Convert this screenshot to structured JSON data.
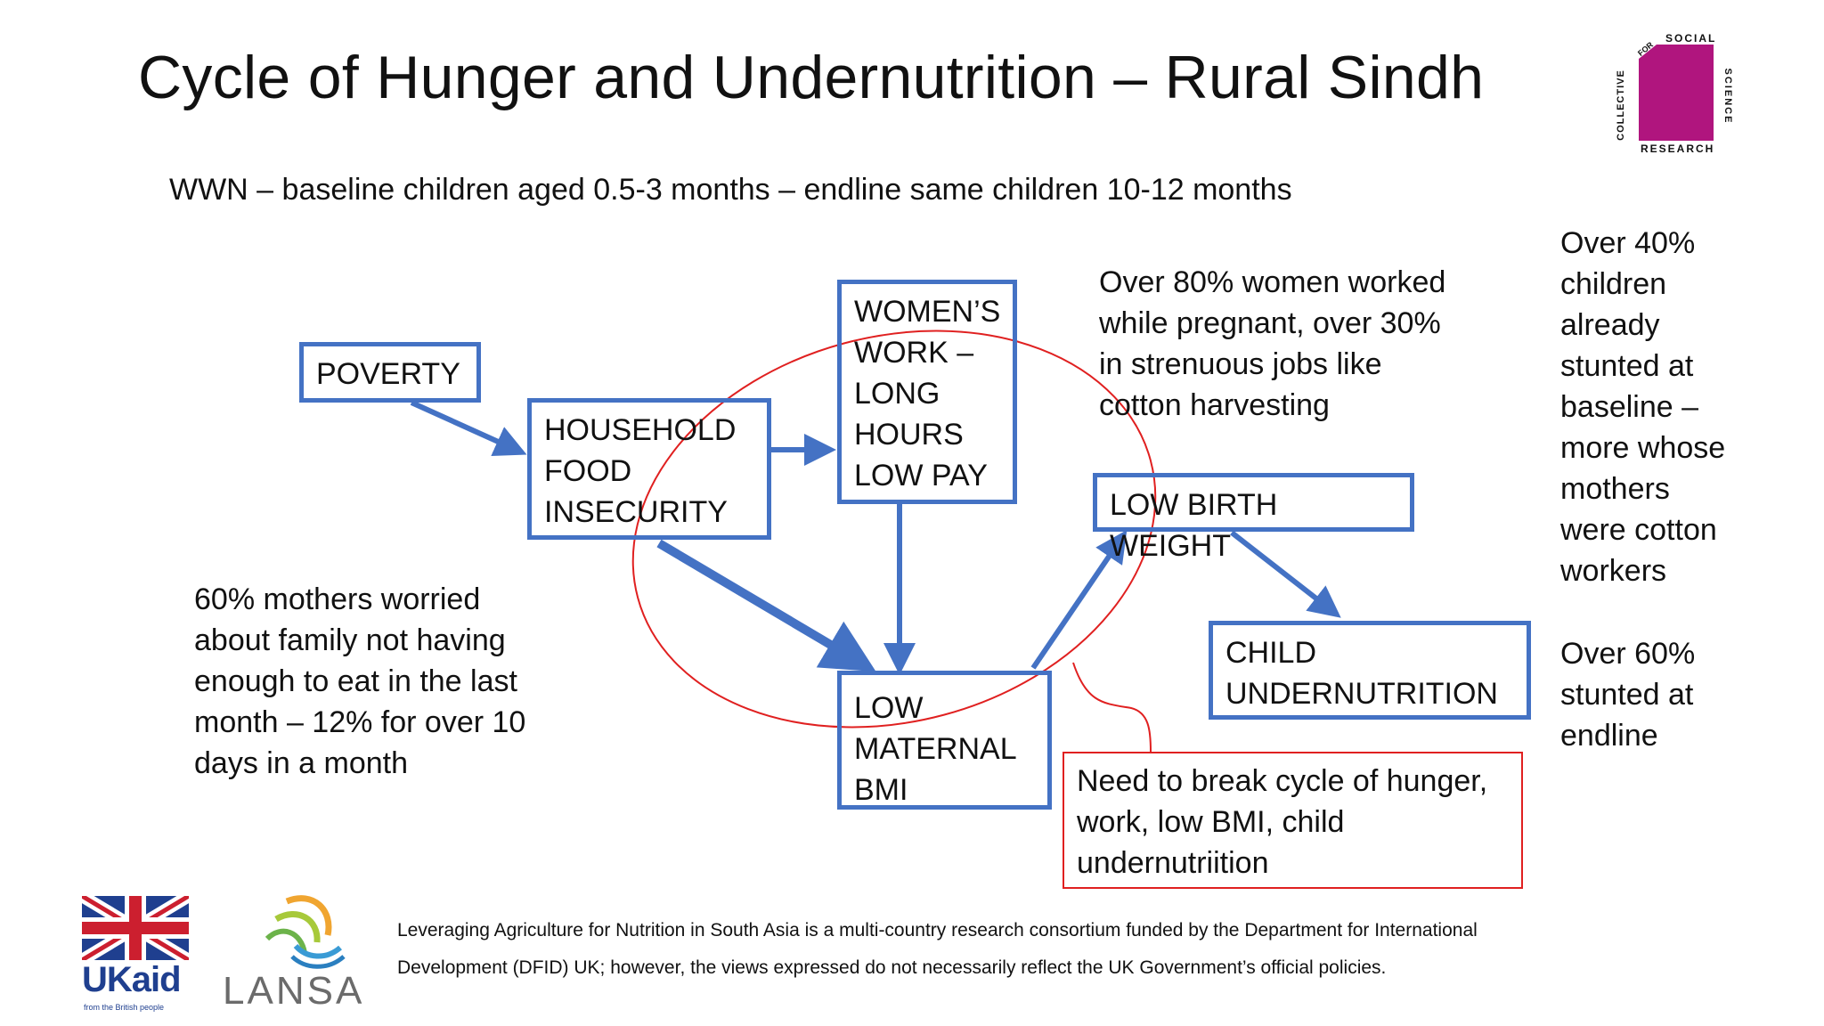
{
  "title": "Cycle of Hunger and Undernutrition – Rural Sindh",
  "subtitle": "WWN – baseline children aged 0.5-3 months – endline same children 10-12 months",
  "boxes": {
    "poverty": "POVERTY",
    "food_insecurity": "HOUSEHOLD\nFOOD\nINSECURITY",
    "womens_work": "WOMEN’S\nWORK –\nLONG\nHOURS\nLOW PAY",
    "low_birth_weight": "LOW BIRTH WEIGHT",
    "low_maternal_bmi": "LOW\nMATERNAL\nBMI",
    "child_undernutrition": "CHILD\nUNDERNUTRITION"
  },
  "notes": {
    "women_worked": "Over 80% women worked\nwhile pregnant, over 30%\nin strenuous jobs like\ncotton harvesting",
    "stunted_baseline": "Over 40%\nchildren\nalready\nstunted at\nbaseline –\nmore whose\nmothers\nwere cotton\nworkers",
    "stunted_endline": "Over 60%\nstunted at\nendline",
    "mothers_worried": "60% mothers worried\nabout family not having\nenough to eat in the last\nmonth – 12% for over 10\ndays in a month"
  },
  "callout": "Need to break cycle of hunger,\nwork, low BMI, child\nundernutriition",
  "footer": "Leveraging Agriculture for Nutrition in South Asia is a multi-country research consortium funded by the Department for International\nDevelopment (DFID) UK; however, the views expressed do not necessarily reflect the UK Government’s official policies.",
  "logos": {
    "cssr": {
      "top": "SOCIAL",
      "left": "COLLECTIVE",
      "corner": "FOR",
      "right": "SCIENCE",
      "bottom": "RESEARCH",
      "color": "#b0157e"
    },
    "ukaid": {
      "main": "UKaid",
      "sub": "from the British people"
    },
    "lansa": "LANSA"
  },
  "colors": {
    "box_border": "#4472c4",
    "arrow": "#4472c4",
    "cycle": "#e02020"
  }
}
